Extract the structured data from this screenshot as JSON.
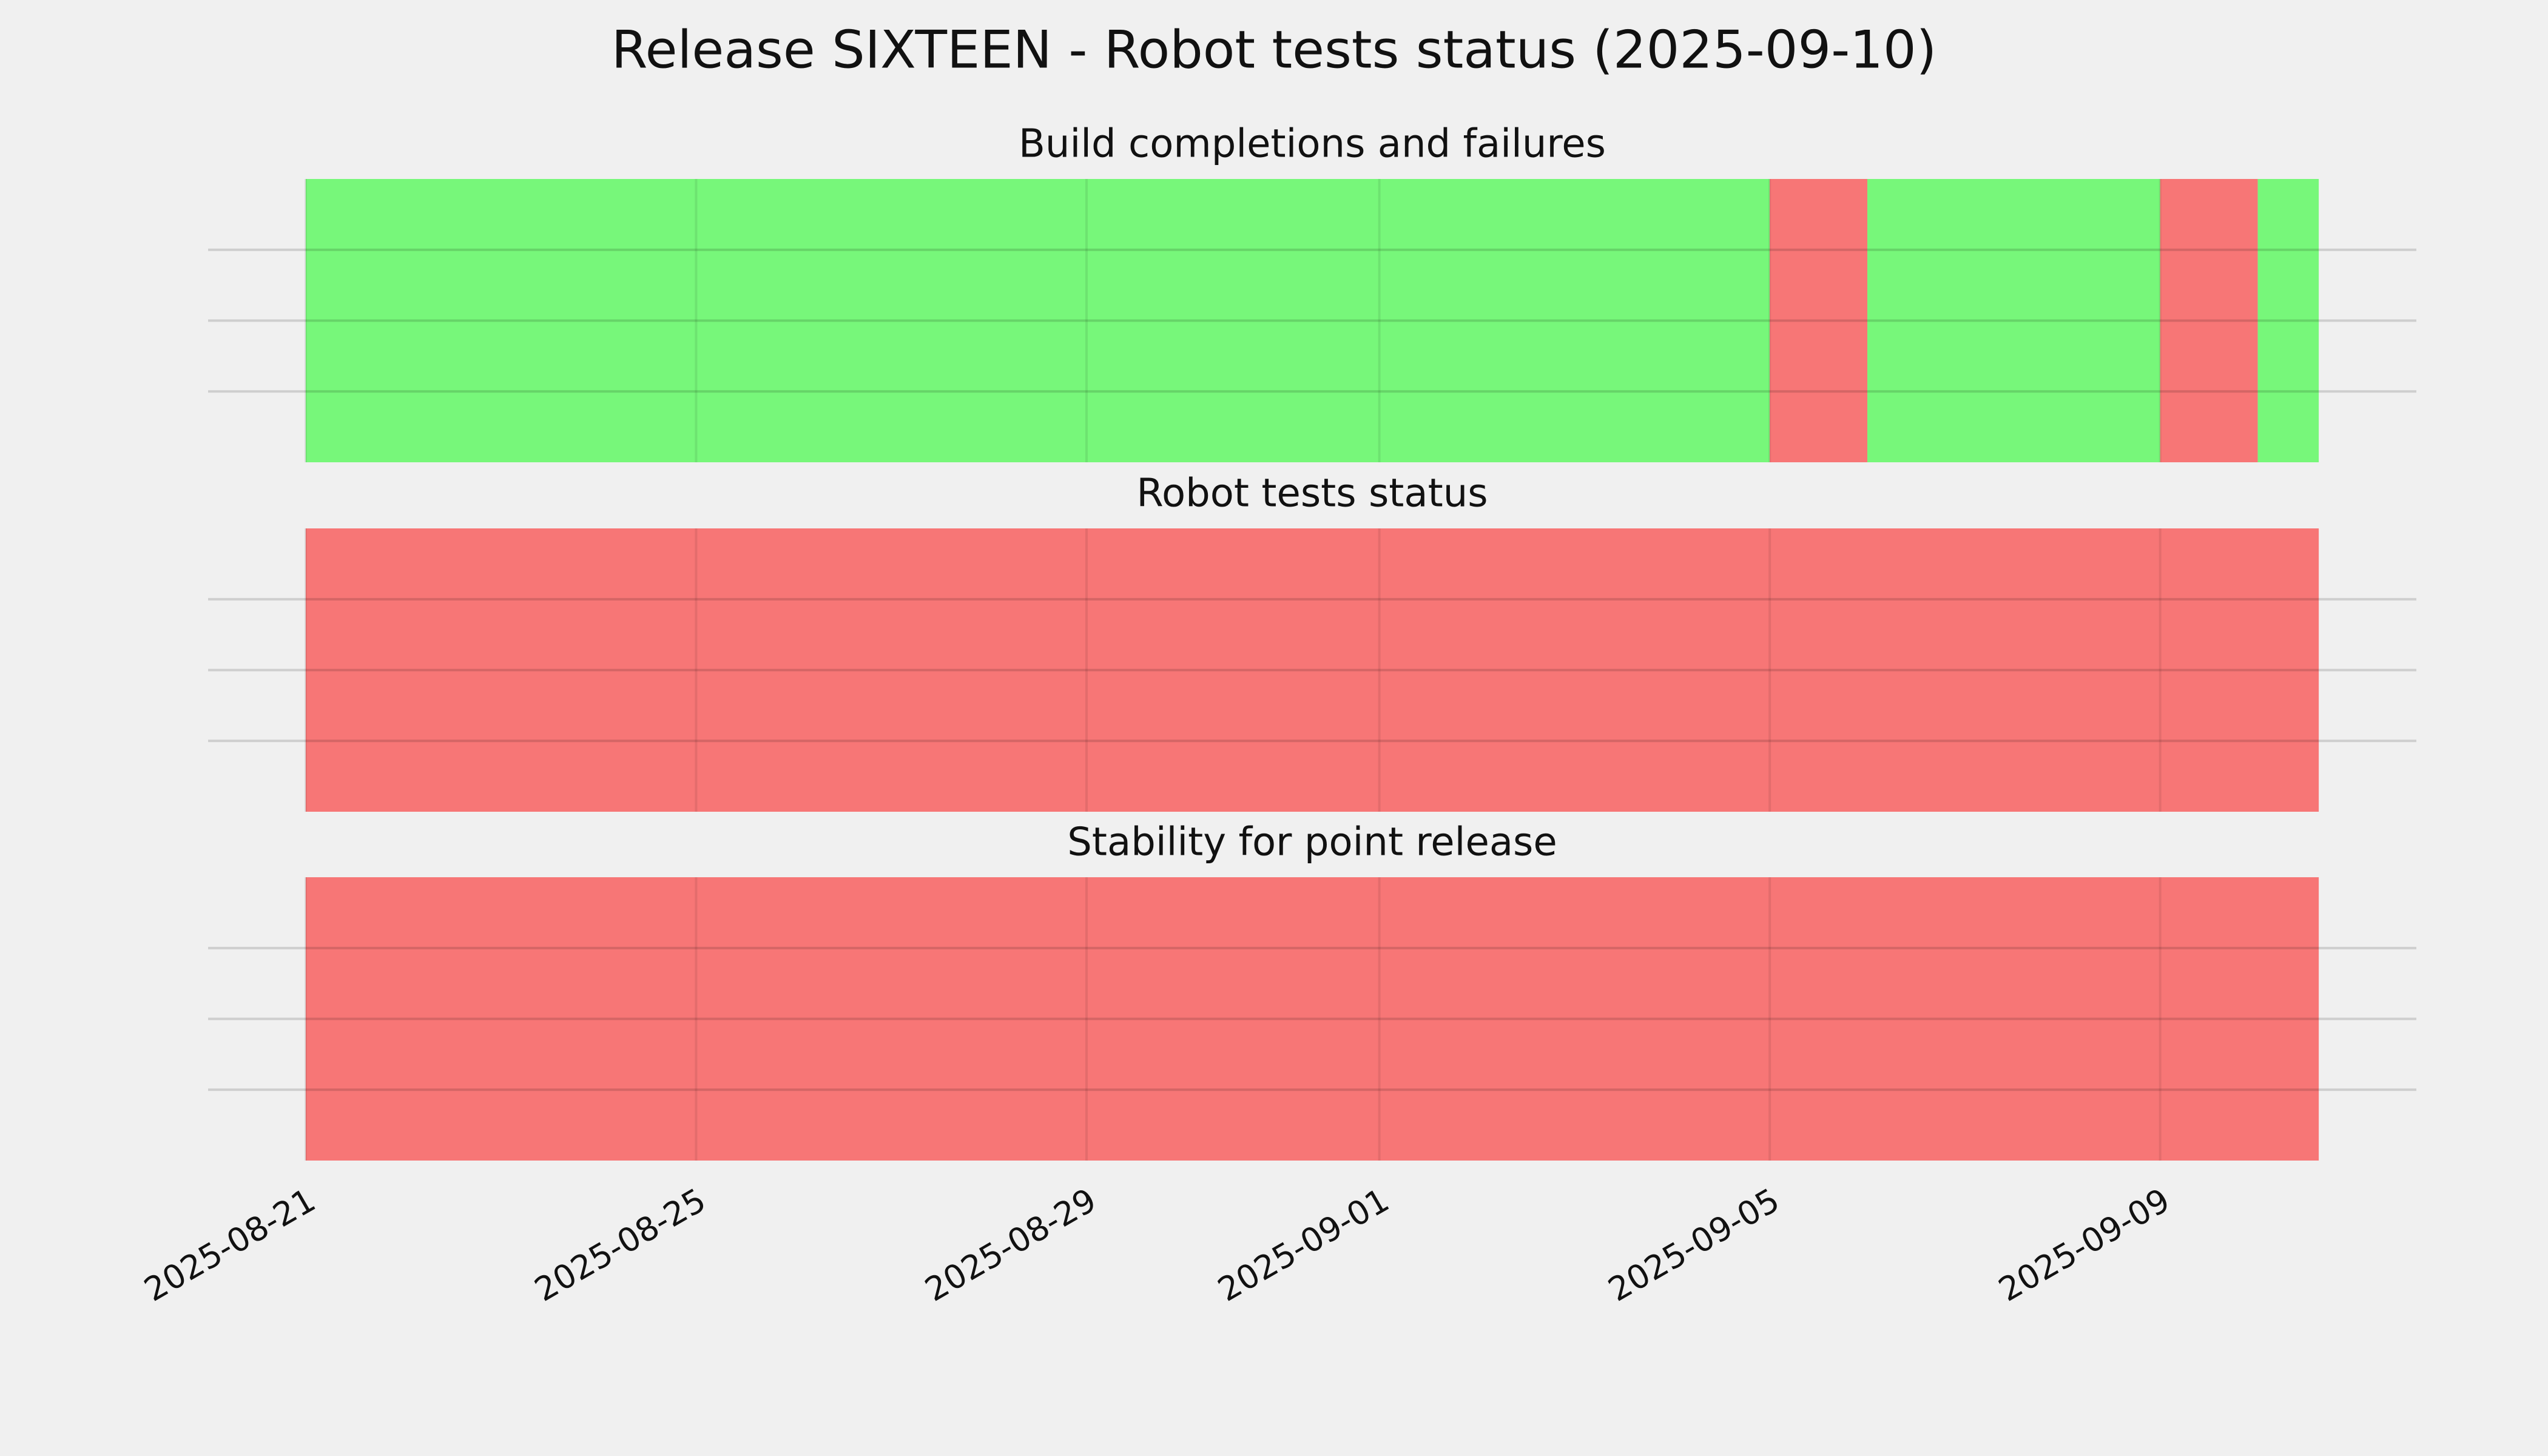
{
  "chart_data": {
    "type": "timeline",
    "title": "Release SIXTEEN - Robot tests status (2025-09-10)",
    "xlim": [
      "2025-08-20",
      "2025-09-11T15:00"
    ],
    "xticks": [
      "2025-08-21",
      "2025-08-25",
      "2025-08-29",
      "2025-09-01",
      "2025-09-05",
      "2025-09-09"
    ],
    "grid": true,
    "panels": [
      {
        "title": "Build completions and failures",
        "edges": [
          "2025-08-21",
          "2025-09-05",
          "2025-09-06",
          "2025-09-09",
          "2025-09-10",
          "2025-09-10T15:00"
        ],
        "colors": [
          "#77f77a",
          "#f77676",
          "#77f77a",
          "#f77676",
          "#77f77a"
        ],
        "ylim": [
          0,
          1
        ],
        "yticks": [
          0.25,
          0.5,
          0.75
        ]
      },
      {
        "title": "Robot tests status",
        "edges": [
          "2025-08-21",
          "2025-09-10T15:00"
        ],
        "colors": [
          "#f77676"
        ],
        "ylim": [
          0,
          1
        ],
        "yticks": [
          0.25,
          0.5,
          0.75
        ]
      },
      {
        "title": "Stability for point release",
        "edges": [
          "2025-08-21",
          "2025-09-10T15:00"
        ],
        "colors": [
          "#f77676"
        ],
        "ylim": [
          0,
          1
        ],
        "yticks": [
          0.25,
          0.5,
          0.75
        ]
      }
    ]
  }
}
